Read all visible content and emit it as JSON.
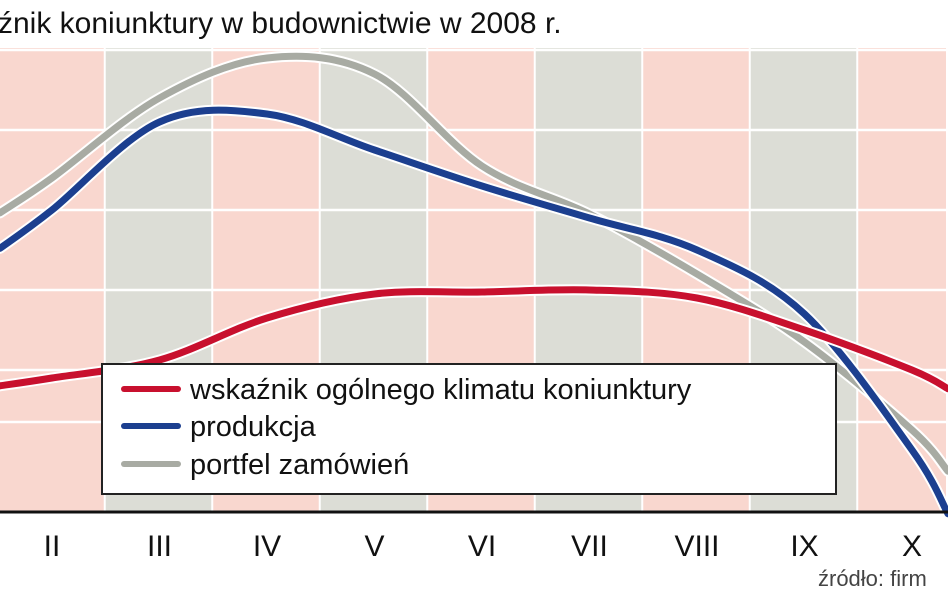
{
  "chart_data": {
    "type": "line",
    "title": "źnik koniunktury w budownictwie w 2008 r.",
    "source": "źródło: firm",
    "categories": [
      "II",
      "III",
      "IV",
      "V",
      "VI",
      "VII",
      "VIII",
      "IX",
      "X"
    ],
    "grid": true,
    "legend_position": "bottom-center",
    "series": [
      {
        "name": "wskaźnik ogólnego klimatu koniunktury",
        "color": "#c8102e",
        "values": [
          -12,
          -7.5,
          3,
          9,
          9.5,
          10,
          8,
          0,
          -10
        ]
      },
      {
        "name": "produkcja",
        "color": "#1c3f8f",
        "values": [
          30,
          52,
          54,
          45,
          36,
          28,
          20,
          4,
          -30
        ]
      },
      {
        "name": "portfel zamówień",
        "color": "#a8aba3",
        "values": [
          38,
          58,
          68,
          64,
          41,
          29,
          14,
          -3,
          -25
        ]
      }
    ],
    "band_colors": [
      "#f9d7cf",
      "#dcddd6"
    ]
  }
}
